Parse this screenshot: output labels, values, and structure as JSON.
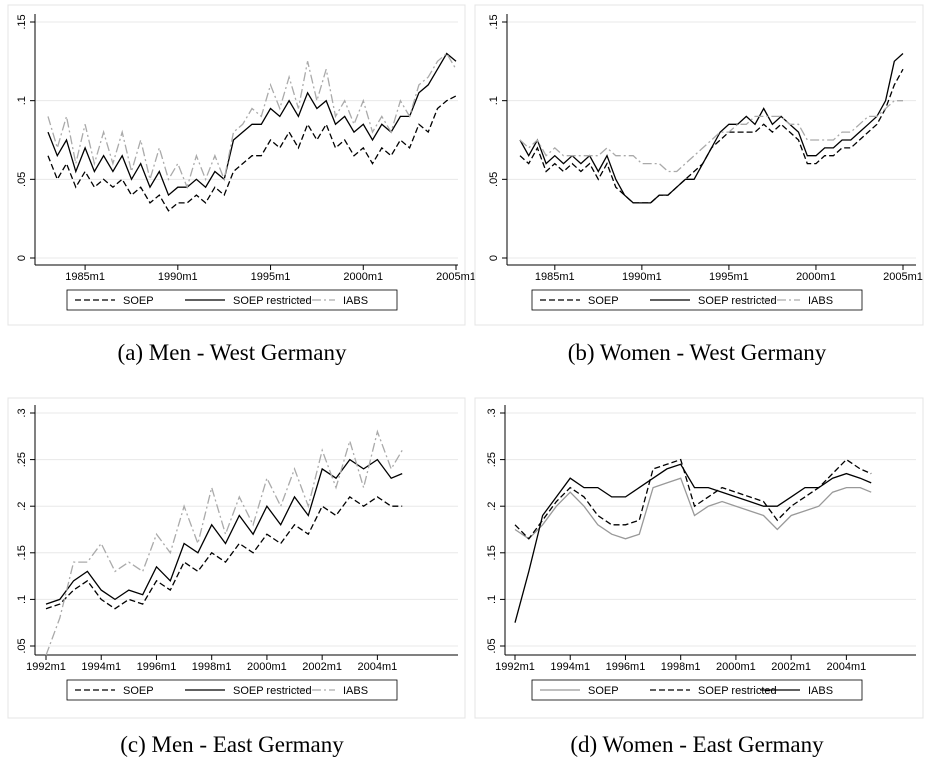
{
  "chart_data": [
    {
      "type": "line",
      "caption": "(a) Men - West Germany",
      "x": [
        1983,
        1983.5,
        1984,
        1984.5,
        1985,
        1985.5,
        1986,
        1986.5,
        1987,
        1987.5,
        1988,
        1988.5,
        1989,
        1989.5,
        1990,
        1990.5,
        1991,
        1991.5,
        1992,
        1992.5,
        1993,
        1993.5,
        1994,
        1994.5,
        1995,
        1995.5,
        1996,
        1996.5,
        1997,
        1997.5,
        1998,
        1998.5,
        1999,
        1999.5,
        2000,
        2000.5,
        2001,
        2001.5,
        2002,
        2002.5,
        2003,
        2003.5,
        2004,
        2004.5,
        2005
      ],
      "xlim": [
        1983,
        2005
      ],
      "xticks": [
        {
          "value": 1985,
          "label": "1985m1"
        },
        {
          "value": 1990,
          "label": "1990m1"
        },
        {
          "value": 1995,
          "label": "1995m1"
        },
        {
          "value": 2000,
          "label": "2000m1"
        },
        {
          "value": 2005,
          "label": "2005m1"
        }
      ],
      "ylim": [
        0,
        0.15
      ],
      "yticks": [
        0,
        {
          "value": 0.05,
          "label": ".05"
        },
        {
          "value": 0.1,
          "label": ".1"
        },
        {
          "value": 0.15,
          "label": ".15"
        }
      ],
      "grid": true,
      "series": [
        {
          "name": "SOEP",
          "color": "#000000",
          "dash": "dashed",
          "values": [
            0.065,
            0.05,
            0.06,
            0.045,
            0.055,
            0.045,
            0.05,
            0.045,
            0.05,
            0.04,
            0.045,
            0.035,
            0.04,
            0.03,
            0.035,
            0.035,
            0.04,
            0.035,
            0.045,
            0.04,
            0.055,
            0.06,
            0.065,
            0.065,
            0.075,
            0.07,
            0.08,
            0.07,
            0.085,
            0.075,
            0.085,
            0.07,
            0.075,
            0.065,
            0.07,
            0.06,
            0.07,
            0.065,
            0.075,
            0.07,
            0.085,
            0.08,
            0.095,
            0.1,
            0.103
          ]
        },
        {
          "name": "SOEP restricted",
          "color": "#000000",
          "dash": "solid",
          "values": [
            0.08,
            0.065,
            0.075,
            0.055,
            0.07,
            0.055,
            0.065,
            0.055,
            0.065,
            0.05,
            0.06,
            0.045,
            0.055,
            0.04,
            0.045,
            0.045,
            0.05,
            0.045,
            0.055,
            0.05,
            0.075,
            0.08,
            0.085,
            0.085,
            0.095,
            0.09,
            0.1,
            0.09,
            0.105,
            0.095,
            0.1,
            0.085,
            0.09,
            0.08,
            0.085,
            0.075,
            0.085,
            0.08,
            0.09,
            0.09,
            0.105,
            0.11,
            0.12,
            0.13,
            0.125
          ]
        },
        {
          "name": "IABS",
          "color": "#aaaaaa",
          "dash": "dashdot",
          "values": [
            0.09,
            0.07,
            0.09,
            0.06,
            0.085,
            0.06,
            0.08,
            0.06,
            0.08,
            0.055,
            0.075,
            0.05,
            0.07,
            0.05,
            0.06,
            0.045,
            0.065,
            0.05,
            0.065,
            0.05,
            0.08,
            0.085,
            0.095,
            0.09,
            0.11,
            0.095,
            0.115,
            0.095,
            0.125,
            0.1,
            0.12,
            0.09,
            0.1,
            0.085,
            0.1,
            0.08,
            0.09,
            0.08,
            0.1,
            0.09,
            0.11,
            0.115,
            0.125,
            0.13,
            0.12
          ]
        }
      ]
    },
    {
      "type": "line",
      "caption": "(b) Women - West Germany",
      "x": [
        1983,
        1983.5,
        1984,
        1984.5,
        1985,
        1985.5,
        1986,
        1986.5,
        1987,
        1987.5,
        1988,
        1988.5,
        1989,
        1989.5,
        1990,
        1990.5,
        1991,
        1991.5,
        1992,
        1992.5,
        1993,
        1993.5,
        1994,
        1994.5,
        1995,
        1995.5,
        1996,
        1996.5,
        1997,
        1997.5,
        1998,
        1998.5,
        1999,
        1999.5,
        2000,
        2000.5,
        2001,
        2001.5,
        2002,
        2002.5,
        2003,
        2003.5,
        2004,
        2004.5,
        2005
      ],
      "xlim": [
        1983,
        2005
      ],
      "xticks": [
        {
          "value": 1985,
          "label": "1985m1"
        },
        {
          "value": 1990,
          "label": "1990m1"
        },
        {
          "value": 1995,
          "label": "1995m1"
        },
        {
          "value": 2000,
          "label": "2000m1"
        },
        {
          "value": 2005,
          "label": "2005m1"
        }
      ],
      "ylim": [
        0,
        0.15
      ],
      "yticks": [
        0,
        {
          "value": 0.05,
          "label": ".05"
        },
        {
          "value": 0.1,
          "label": ".1"
        },
        {
          "value": 0.15,
          "label": ".15"
        }
      ],
      "grid": true,
      "series": [
        {
          "name": "SOEP",
          "color": "#000000",
          "dash": "dashed",
          "values": [
            0.065,
            0.06,
            0.07,
            0.055,
            0.06,
            0.055,
            0.06,
            0.055,
            0.06,
            0.05,
            0.06,
            0.045,
            0.04,
            0.035,
            0.035,
            0.035,
            0.04,
            0.04,
            0.045,
            0.05,
            0.055,
            0.06,
            0.07,
            0.075,
            0.08,
            0.08,
            0.08,
            0.08,
            0.085,
            0.08,
            0.085,
            0.08,
            0.075,
            0.06,
            0.06,
            0.065,
            0.065,
            0.07,
            0.07,
            0.075,
            0.08,
            0.085,
            0.095,
            0.11,
            0.12
          ]
        },
        {
          "name": "SOEP restricted",
          "color": "#000000",
          "dash": "solid",
          "values": [
            0.075,
            0.065,
            0.075,
            0.06,
            0.065,
            0.06,
            0.065,
            0.06,
            0.065,
            0.055,
            0.065,
            0.05,
            0.04,
            0.035,
            0.035,
            0.035,
            0.04,
            0.04,
            0.045,
            0.05,
            0.05,
            0.06,
            0.07,
            0.08,
            0.085,
            0.085,
            0.09,
            0.085,
            0.095,
            0.085,
            0.09,
            0.085,
            0.08,
            0.065,
            0.065,
            0.07,
            0.07,
            0.075,
            0.075,
            0.08,
            0.085,
            0.09,
            0.1,
            0.125,
            0.13
          ]
        },
        {
          "name": "IABS",
          "color": "#aaaaaa",
          "dash": "dashdot",
          "values": [
            0.075,
            0.07,
            0.075,
            0.065,
            0.07,
            0.065,
            0.065,
            0.065,
            0.065,
            0.065,
            0.07,
            0.065,
            0.065,
            0.065,
            0.06,
            0.06,
            0.06,
            0.055,
            0.055,
            0.06,
            0.065,
            0.07,
            0.075,
            0.08,
            0.08,
            0.085,
            0.085,
            0.09,
            0.09,
            0.09,
            0.09,
            0.085,
            0.085,
            0.075,
            0.075,
            0.075,
            0.075,
            0.08,
            0.08,
            0.085,
            0.09,
            0.09,
            0.095,
            0.1,
            0.1
          ]
        }
      ]
    },
    {
      "type": "line",
      "caption": "(c) Men - East Germany",
      "x": [
        1992,
        1992.5,
        1993,
        1993.5,
        1994,
        1994.5,
        1995,
        1995.5,
        1996,
        1996.5,
        1997,
        1997.5,
        1998,
        1998.5,
        1999,
        1999.5,
        2000,
        2000.5,
        2001,
        2001.5,
        2002,
        2002.5,
        2003,
        2003.5,
        2004,
        2004.5,
        2004.9
      ],
      "xlim": [
        1992,
        2005
      ],
      "xticks": [
        {
          "value": 1992,
          "label": "1992m1"
        },
        {
          "value": 1994,
          "label": "1994m1"
        },
        {
          "value": 1996,
          "label": "1996m1"
        },
        {
          "value": 1998,
          "label": "1998m1"
        },
        {
          "value": 2000,
          "label": "2000m1"
        },
        {
          "value": 2002,
          "label": "2002m1"
        },
        {
          "value": 2004,
          "label": "2004m1"
        }
      ],
      "ylim": [
        0.05,
        0.3
      ],
      "yticks": [
        {
          "value": 0.05,
          "label": ".05"
        },
        {
          "value": 0.1,
          "label": ".1"
        },
        {
          "value": 0.15,
          "label": ".15"
        },
        {
          "value": 0.2,
          "label": ".2"
        },
        {
          "value": 0.25,
          "label": ".25"
        },
        {
          "value": 0.3,
          "label": ".3"
        }
      ],
      "grid": true,
      "series": [
        {
          "name": "SOEP",
          "color": "#000000",
          "dash": "dashed",
          "values": [
            0.09,
            0.095,
            0.11,
            0.12,
            0.1,
            0.09,
            0.1,
            0.095,
            0.12,
            0.11,
            0.14,
            0.13,
            0.15,
            0.14,
            0.16,
            0.15,
            0.17,
            0.16,
            0.18,
            0.17,
            0.2,
            0.19,
            0.21,
            0.2,
            0.21,
            0.2,
            0.2
          ]
        },
        {
          "name": "SOEP restricted",
          "color": "#000000",
          "dash": "solid",
          "values": [
            0.095,
            0.1,
            0.12,
            0.13,
            0.11,
            0.1,
            0.11,
            0.105,
            0.135,
            0.12,
            0.16,
            0.15,
            0.18,
            0.16,
            0.19,
            0.17,
            0.2,
            0.18,
            0.21,
            0.19,
            0.24,
            0.23,
            0.25,
            0.24,
            0.25,
            0.23,
            0.235
          ]
        },
        {
          "name": "IABS",
          "color": "#aaaaaa",
          "dash": "dashdot",
          "values": [
            0.04,
            0.08,
            0.14,
            0.14,
            0.16,
            0.13,
            0.14,
            0.13,
            0.17,
            0.15,
            0.2,
            0.16,
            0.22,
            0.17,
            0.21,
            0.18,
            0.23,
            0.2,
            0.24,
            0.2,
            0.26,
            0.22,
            0.27,
            0.22,
            0.28,
            0.24,
            0.26
          ]
        }
      ]
    },
    {
      "type": "line",
      "caption": "(d) Women - East Germany",
      "x": [
        1992,
        1992.5,
        1993,
        1993.5,
        1994,
        1994.5,
        1995,
        1995.5,
        1996,
        1996.5,
        1997,
        1997.5,
        1998,
        1998.5,
        1999,
        1999.5,
        2000,
        2000.5,
        2001,
        2001.5,
        2002,
        2002.5,
        2003,
        2003.5,
        2004,
        2004.5,
        2004.9
      ],
      "xlim": [
        1992,
        2005
      ],
      "xticks": [
        {
          "value": 1992,
          "label": "1992m1"
        },
        {
          "value": 1994,
          "label": "1994m1"
        },
        {
          "value": 1996,
          "label": "1996m1"
        },
        {
          "value": 1998,
          "label": "1998m1"
        },
        {
          "value": 2000,
          "label": "2000m1"
        },
        {
          "value": 2002,
          "label": "2002m1"
        },
        {
          "value": 2004,
          "label": "2004m1"
        }
      ],
      "ylim": [
        0.05,
        0.3
      ],
      "yticks": [
        {
          "value": 0.05,
          "label": ".05"
        },
        {
          "value": 0.1,
          "label": ".1"
        },
        {
          "value": 0.15,
          "label": ".15"
        },
        {
          "value": 0.2,
          "label": ".2"
        },
        {
          "value": 0.25,
          "label": ".25"
        },
        {
          "value": 0.3,
          "label": ".3"
        }
      ],
      "grid": true,
      "series": [
        {
          "name": "SOEP",
          "color": "#999999",
          "dash": "solid",
          "values": [
            0.175,
            0.165,
            0.18,
            0.2,
            0.215,
            0.2,
            0.18,
            0.17,
            0.165,
            0.17,
            0.22,
            0.225,
            0.23,
            0.19,
            0.2,
            0.205,
            0.2,
            0.195,
            0.19,
            0.175,
            0.19,
            0.195,
            0.2,
            0.215,
            0.22,
            0.22,
            0.215
          ]
        },
        {
          "name": "SOEP restricted",
          "color": "#000000",
          "dash": "dashed",
          "values": [
            0.18,
            0.165,
            0.185,
            0.205,
            0.22,
            0.21,
            0.19,
            0.18,
            0.18,
            0.185,
            0.24,
            0.245,
            0.25,
            0.2,
            0.21,
            0.22,
            0.215,
            0.21,
            0.205,
            0.185,
            0.2,
            0.21,
            0.22,
            0.235,
            0.25,
            0.24,
            0.235
          ]
        },
        {
          "name": "IABS",
          "color": "#000000",
          "dash": "solid",
          "values": [
            0.075,
            0.13,
            0.19,
            0.21,
            0.23,
            0.22,
            0.22,
            0.21,
            0.21,
            0.22,
            0.23,
            0.24,
            0.245,
            0.22,
            0.22,
            0.215,
            0.21,
            0.205,
            0.2,
            0.2,
            0.21,
            0.22,
            0.22,
            0.23,
            0.235,
            0.23,
            0.225
          ]
        }
      ]
    }
  ]
}
